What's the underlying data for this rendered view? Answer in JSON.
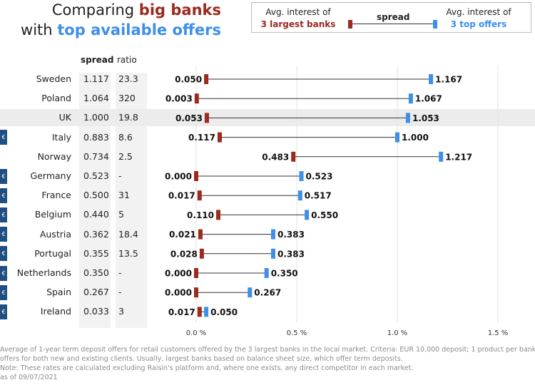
{
  "title": {
    "line1_plain": "Comparing ",
    "line1_emph": "big banks",
    "line2_plain": "with ",
    "line2_emph": "top available offers"
  },
  "legend": {
    "left_top": "Avg. interest of",
    "left_bottom": "3 largest banks",
    "middle": "spread",
    "right_top": "Avg. interest of",
    "right_bottom": "3 top offers"
  },
  "columns": {
    "spread": "spread",
    "ratio": "ratio"
  },
  "colors": {
    "big_banks": "#9b2a1f",
    "top_offers": "#3d8fe8",
    "euro_badge": "#1f4f82"
  },
  "euro_symbol": "€",
  "chart_data": {
    "type": "dumbbell",
    "x_unit": "%",
    "xlim": [
      0,
      1.6
    ],
    "x_ticks": [
      {
        "value": 0,
        "label": "0.0 %"
      },
      {
        "value": 0.5,
        "label": "0.5 %"
      },
      {
        "value": 1.0,
        "label": "1.0 %"
      },
      {
        "value": 1.5,
        "label": "1.5 %"
      }
    ],
    "grid": true,
    "highlighted_row": "UK",
    "rows": [
      {
        "country": "Sweden",
        "euro": false,
        "spread": "1.117",
        "ratio": "23.3",
        "big": 0.05,
        "big_label": "0.050",
        "top": 1.167,
        "top_label": "1.167"
      },
      {
        "country": "Poland",
        "euro": false,
        "spread": "1.064",
        "ratio": "320",
        "big": 0.003,
        "big_label": "0.003",
        "top": 1.067,
        "top_label": "1.067"
      },
      {
        "country": "UK",
        "euro": false,
        "spread": "1.000",
        "ratio": "19.8",
        "big": 0.053,
        "big_label": "0.053",
        "top": 1.053,
        "top_label": "1.053"
      },
      {
        "country": "Italy",
        "euro": true,
        "spread": "0.883",
        "ratio": "8.6",
        "big": 0.117,
        "big_label": "0.117",
        "top": 1.0,
        "top_label": "1.000"
      },
      {
        "country": "Norway",
        "euro": false,
        "spread": "0.734",
        "ratio": "2.5",
        "big": 0.483,
        "big_label": "0.483",
        "top": 1.217,
        "top_label": "1.217"
      },
      {
        "country": "Germany",
        "euro": true,
        "spread": "0.523",
        "ratio": "-",
        "big": 0.0,
        "big_label": "0.000",
        "top": 0.523,
        "top_label": "0.523"
      },
      {
        "country": "France",
        "euro": true,
        "spread": "0.500",
        "ratio": "31",
        "big": 0.017,
        "big_label": "0.017",
        "top": 0.517,
        "top_label": "0.517"
      },
      {
        "country": "Belgium",
        "euro": true,
        "spread": "0.440",
        "ratio": "5",
        "big": 0.11,
        "big_label": "0.110",
        "top": 0.55,
        "top_label": "0.550"
      },
      {
        "country": "Austria",
        "euro": true,
        "spread": "0.362",
        "ratio": "18.4",
        "big": 0.021,
        "big_label": "0.021",
        "top": 0.383,
        "top_label": "0.383"
      },
      {
        "country": "Portugal",
        "euro": true,
        "spread": "0.355",
        "ratio": "13.5",
        "big": 0.028,
        "big_label": "0.028",
        "top": 0.383,
        "top_label": "0.383"
      },
      {
        "country": "Netherlands",
        "euro": true,
        "spread": "0.350",
        "ratio": "-",
        "big": 0.0,
        "big_label": "0.000",
        "top": 0.35,
        "top_label": "0.350"
      },
      {
        "country": "Spain",
        "euro": true,
        "spread": "0.267",
        "ratio": "-",
        "big": 0.0,
        "big_label": "0.000",
        "top": 0.267,
        "top_label": "0.267"
      },
      {
        "country": "Ireland",
        "euro": true,
        "spread": "0.033",
        "ratio": "3",
        "big": 0.017,
        "big_label": "0.017",
        "top": 0.05,
        "top_label": "0.050"
      }
    ]
  },
  "footnote": {
    "line1": "Average of 1-year term deposit offers for retail customers offered by the 3 largest banks in the local market. Criteria: EUR 10,000 deposit; 1 product per bank;",
    "line2": "offers for both new and existing clients. Usually, largest banks based on balance sheet size, which offer term deposits.",
    "line3": "Note: These rates are calculated excluding Raisin's platform and, where one exists, any direct competitor in each market.",
    "line4": "as of 09/07/2021"
  }
}
